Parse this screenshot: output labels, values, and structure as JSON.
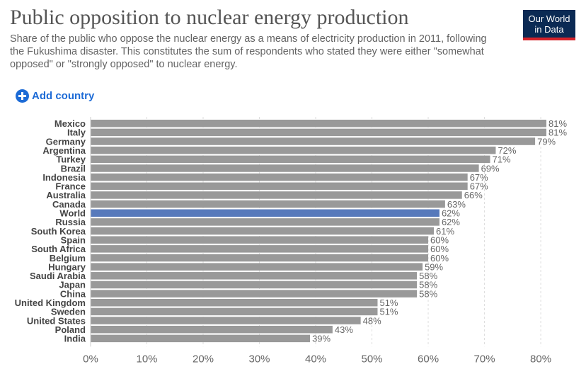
{
  "header": {
    "title": "Public opposition to nuclear energy production",
    "subtitle": "Share of the public who oppose the nuclear energy as a means of electricity production in 2011, following the Fukushima disaster. This constitutes the sum of respondents who stated they were either \"somewhat opposed\" or \"strongly opposed\" to nuclear energy.",
    "logo_line1": "Our World",
    "logo_line2": "in Data"
  },
  "controls": {
    "add_country_label": "Add country",
    "add_country_icon": "plus-circle-icon"
  },
  "colors": {
    "bar": "#999999",
    "highlight": "#5779bb",
    "accent": "#1d6bd6",
    "logo_bg": "#0b2a54",
    "logo_stripe": "#d6232a"
  },
  "chart_data": {
    "type": "bar",
    "orientation": "horizontal",
    "title": "Public opposition to nuclear energy production",
    "unit": "%",
    "highlight": "World",
    "categories": [
      "Mexico",
      "Italy",
      "Germany",
      "Argentina",
      "Turkey",
      "Brazil",
      "Indonesia",
      "France",
      "Australia",
      "Canada",
      "World",
      "Russia",
      "South Korea",
      "Spain",
      "South Africa",
      "Belgium",
      "Hungary",
      "Saudi Arabia",
      "Japan",
      "China",
      "United Kingdom",
      "Sweden",
      "United States",
      "Poland",
      "India"
    ],
    "values": [
      81,
      81,
      79,
      72,
      71,
      69,
      67,
      67,
      66,
      63,
      62,
      62,
      61,
      60,
      60,
      60,
      59,
      58,
      58,
      58,
      51,
      51,
      48,
      43,
      39
    ],
    "value_labels": [
      "81%",
      "81%",
      "79%",
      "72%",
      "71%",
      "69%",
      "67%",
      "67%",
      "66%",
      "63%",
      "62%",
      "62%",
      "61%",
      "60%",
      "60%",
      "60%",
      "59%",
      "58%",
      "58%",
      "58%",
      "51%",
      "51%",
      "48%",
      "43%",
      "39%"
    ],
    "xlim": [
      0,
      81
    ],
    "xticks": [
      0,
      10,
      20,
      30,
      40,
      50,
      60,
      70,
      80
    ],
    "xtick_labels": [
      "0%",
      "10%",
      "20%",
      "30%",
      "40%",
      "50%",
      "60%",
      "70%",
      "80%"
    ],
    "grid": true
  }
}
